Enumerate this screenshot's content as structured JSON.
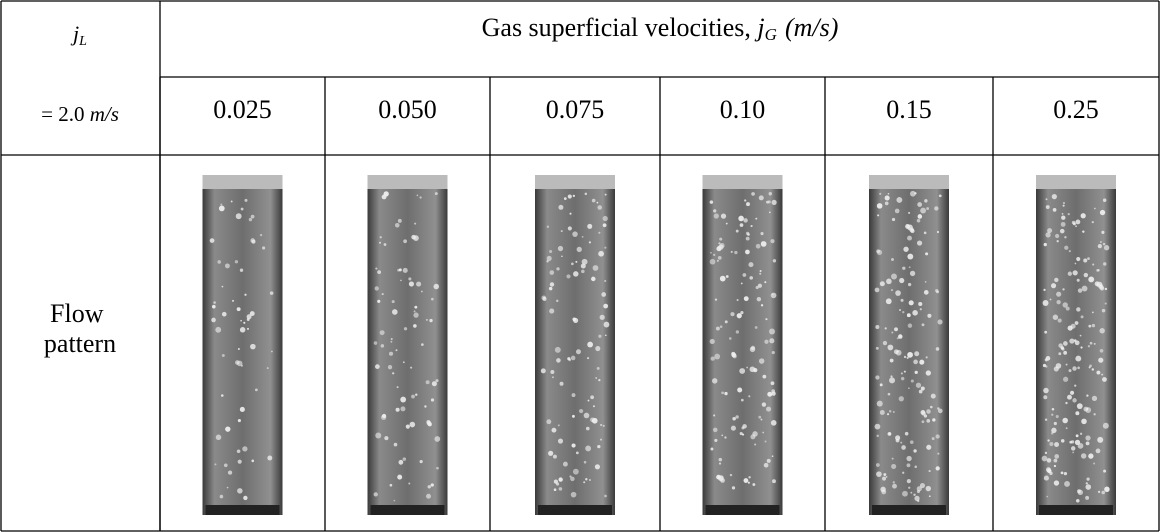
{
  "corner": {
    "symbol": "j",
    "subscript": "L",
    "value": "= 2.0",
    "unit": "m/s"
  },
  "header": {
    "text": "Gas superficial velocities,",
    "symbol": "j",
    "subscript": "G",
    "unit": "(m/s)"
  },
  "velocities": [
    "0.025",
    "0.050",
    "0.075",
    "0.10",
    "0.15",
    "0.25"
  ],
  "row_label": [
    "Flow",
    "pattern"
  ]
}
